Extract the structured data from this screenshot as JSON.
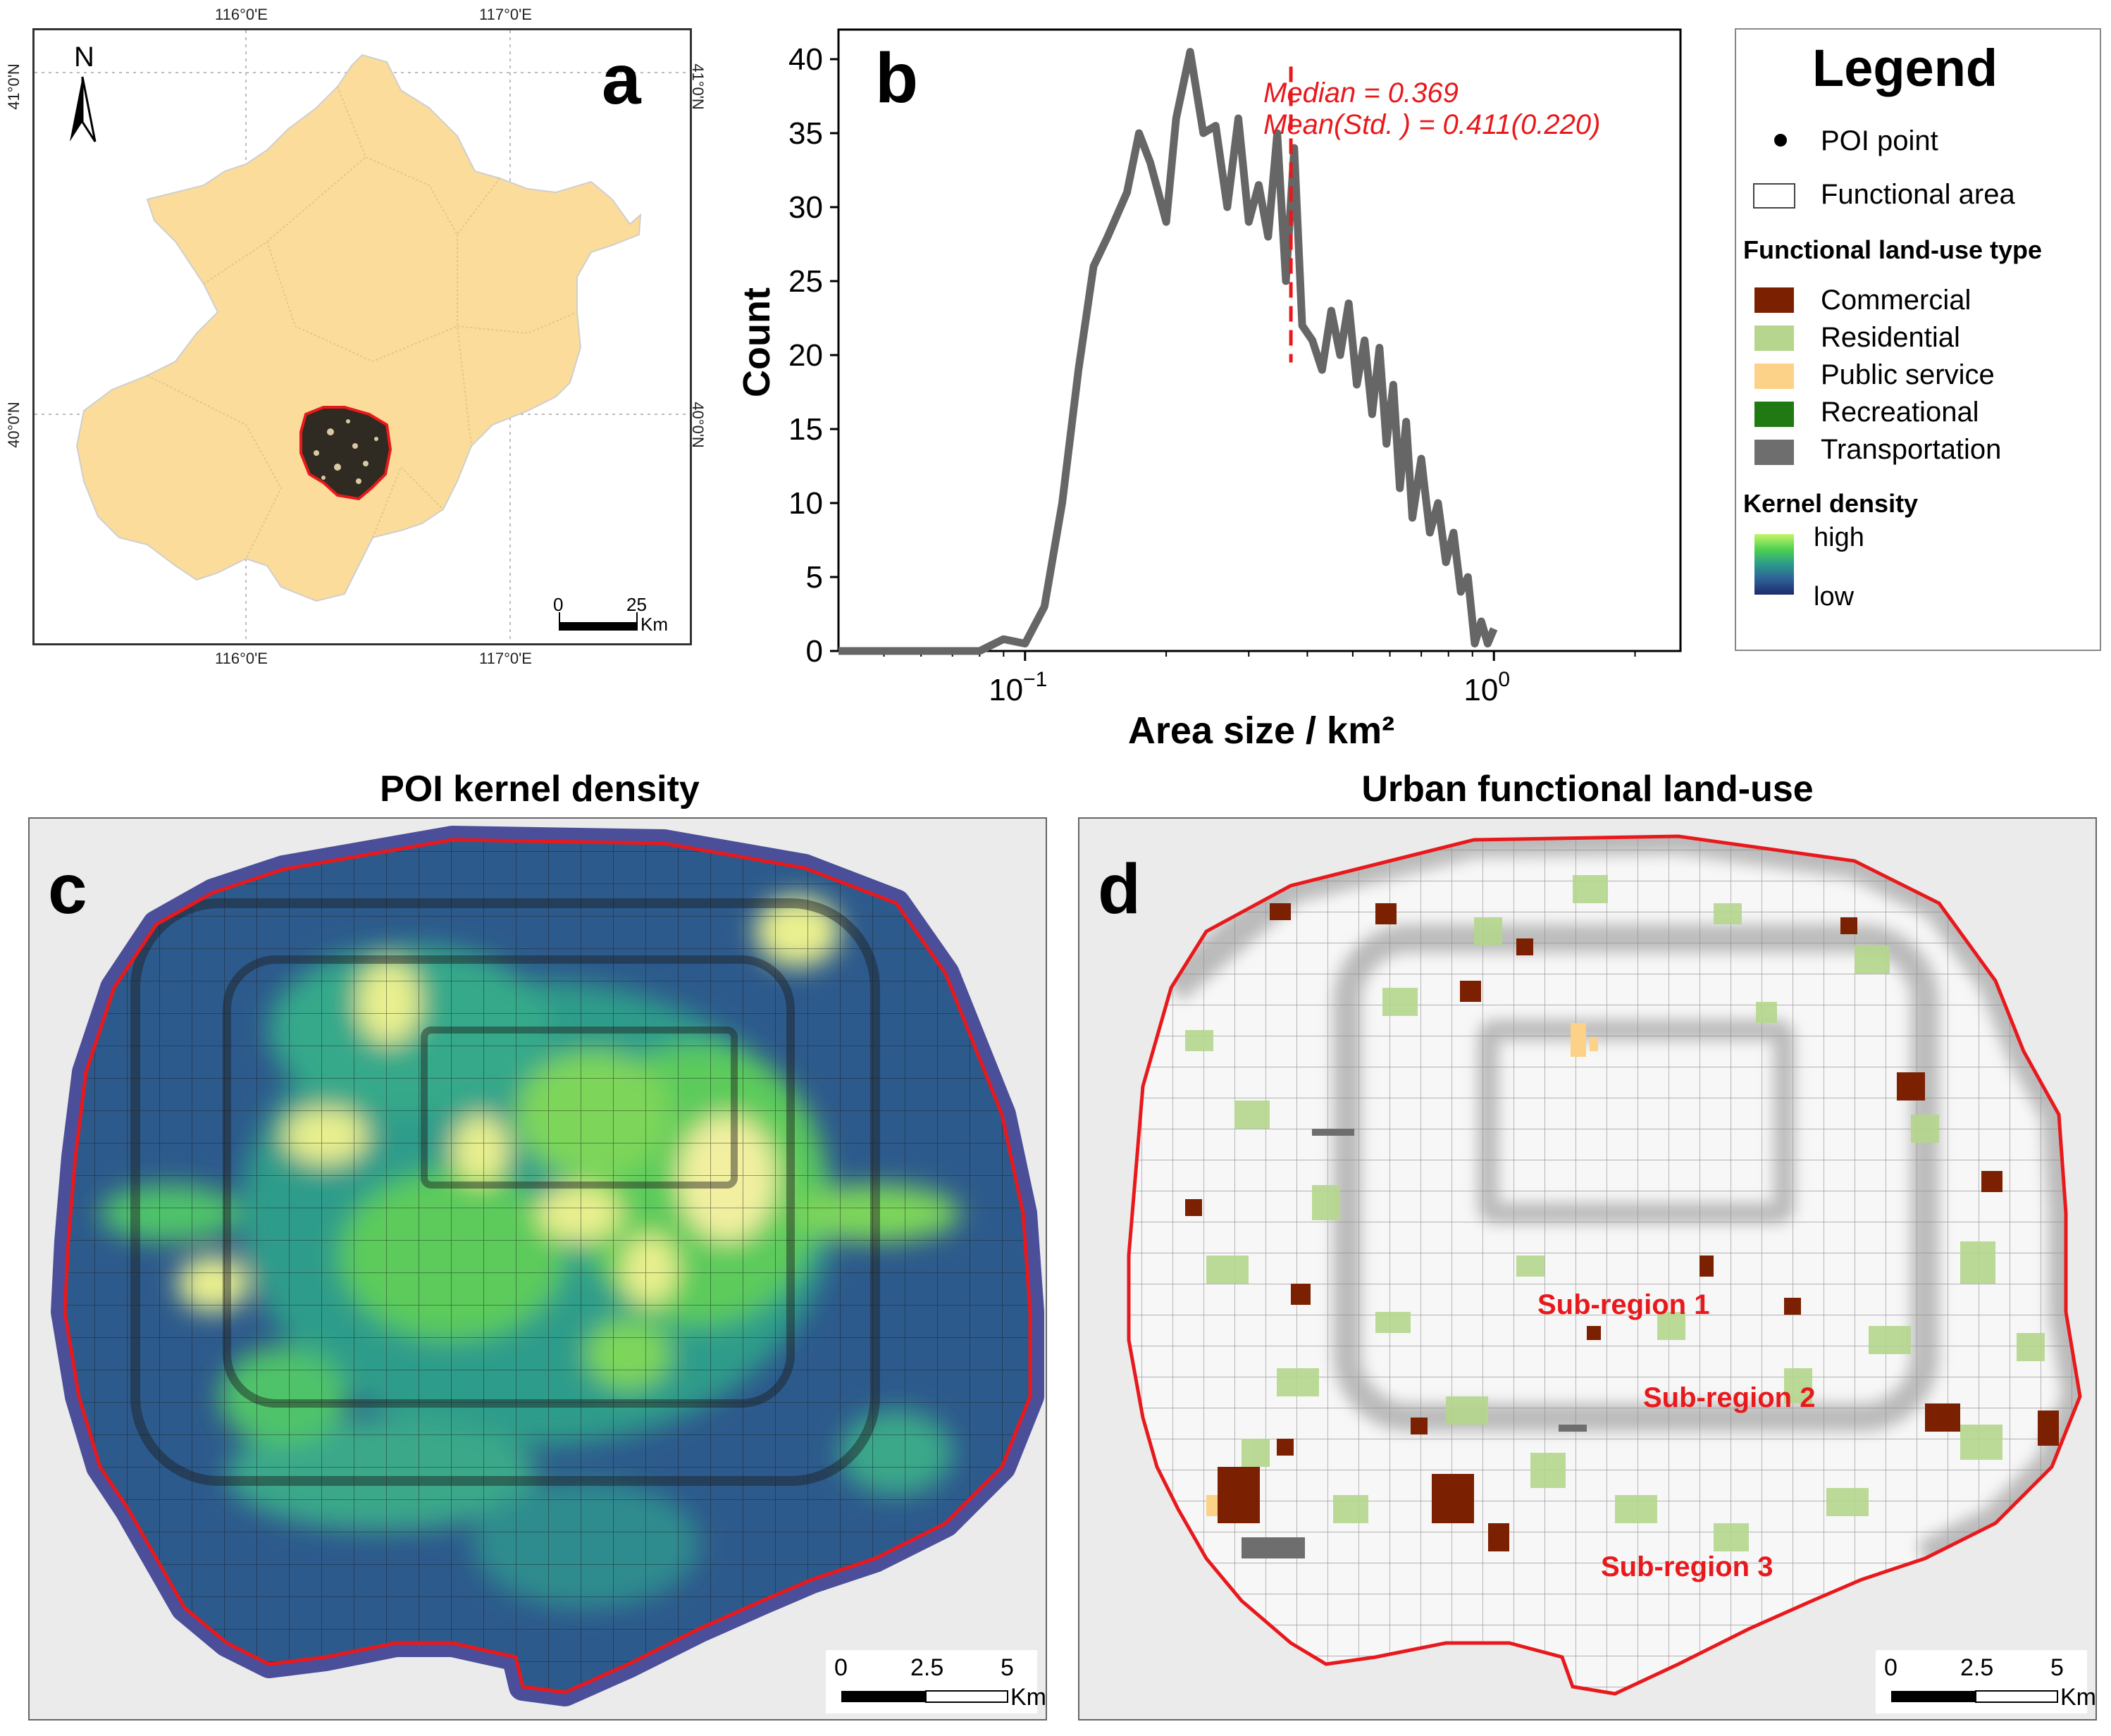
{
  "panel_a": {
    "label": "a",
    "north": "N",
    "top_ticks": [
      "116°0'E",
      "117°0'E"
    ],
    "bottom_ticks": [
      "116°0'E",
      "117°0'E"
    ],
    "left_ticks": [
      "41°0'N",
      "40°0'N"
    ],
    "right_ticks": [
      "41°0'N",
      "40°0'N"
    ],
    "scalebar": {
      "zero": "0",
      "value": "25",
      "unit": "Km"
    }
  },
  "panel_b": {
    "label": "b",
    "median_text": "Median = 0.369",
    "mean_text": "Mean(Std. ) = 0.411(0.220)"
  },
  "panel_c": {
    "title": "POI kernel density",
    "label": "c",
    "scalebar": {
      "zero": "0",
      "mid": "2.5",
      "value": "5",
      "unit": "Km"
    }
  },
  "panel_d": {
    "title": "Urban functional land-use",
    "label": "d",
    "subregions": [
      "Sub-region 1",
      "Sub-region 2",
      "Sub-region 3"
    ],
    "scalebar": {
      "zero": "0",
      "mid": "2.5",
      "value": "5",
      "unit": "Km"
    }
  },
  "legend": {
    "title": "Legend",
    "poi_point": "POI point",
    "functional_area": "Functional area",
    "landuse_heading": "Functional land-use type",
    "landuse_types": [
      {
        "name": "Commercial",
        "color": "#7b2000"
      },
      {
        "name": "Residential",
        "color": "#b5d68c"
      },
      {
        "name": "Public service",
        "color": "#fcd288"
      },
      {
        "name": "Recreational",
        "color": "#1f7a12"
      },
      {
        "name": "Transportation",
        "color": "#6e6e6e"
      }
    ],
    "kernel_heading": "Kernel density",
    "kernel_high": "high",
    "kernel_low": "low"
  },
  "chart_data": {
    "type": "line",
    "title": "",
    "xlabel": "Area size / km²",
    "ylabel": "Count",
    "xscale": "log",
    "xlim": [
      0.04,
      2.5
    ],
    "ylim": [
      0,
      42
    ],
    "y_ticks": [
      0,
      5,
      10,
      15,
      20,
      25,
      30,
      35,
      40
    ],
    "x_ticks": [
      {
        "value": 0.1,
        "base": "10",
        "exp": "−1"
      },
      {
        "value": 1.0,
        "base": "10",
        "exp": "0"
      }
    ],
    "series": [
      {
        "name": "Count",
        "color": "#666666",
        "x": [
          0.04,
          0.05,
          0.065,
          0.08,
          0.09,
          0.1,
          0.11,
          0.12,
          0.13,
          0.14,
          0.15,
          0.165,
          0.175,
          0.185,
          0.2,
          0.21,
          0.225,
          0.24,
          0.255,
          0.27,
          0.285,
          0.3,
          0.315,
          0.33,
          0.345,
          0.36,
          0.375,
          0.39,
          0.41,
          0.43,
          0.45,
          0.47,
          0.49,
          0.51,
          0.53,
          0.55,
          0.57,
          0.59,
          0.61,
          0.63,
          0.65,
          0.67,
          0.7,
          0.73,
          0.76,
          0.79,
          0.82,
          0.85,
          0.88,
          0.91,
          0.94,
          0.97,
          1.0
        ],
        "values": [
          0,
          0,
          0,
          0,
          0.8,
          0.5,
          3,
          10,
          19,
          26,
          28,
          31,
          35,
          33,
          29,
          36,
          40.5,
          35,
          35.5,
          30,
          36,
          29,
          31.5,
          28,
          35,
          25,
          34,
          22,
          21,
          19,
          23,
          20,
          23.5,
          18,
          21,
          16,
          20.5,
          14,
          18,
          11,
          15.5,
          9,
          13,
          8,
          10,
          6,
          8,
          4,
          5,
          0.5,
          2,
          0.5,
          1.5
        ]
      }
    ],
    "median": 0.369,
    "mean": 0.411,
    "std": 0.22
  }
}
